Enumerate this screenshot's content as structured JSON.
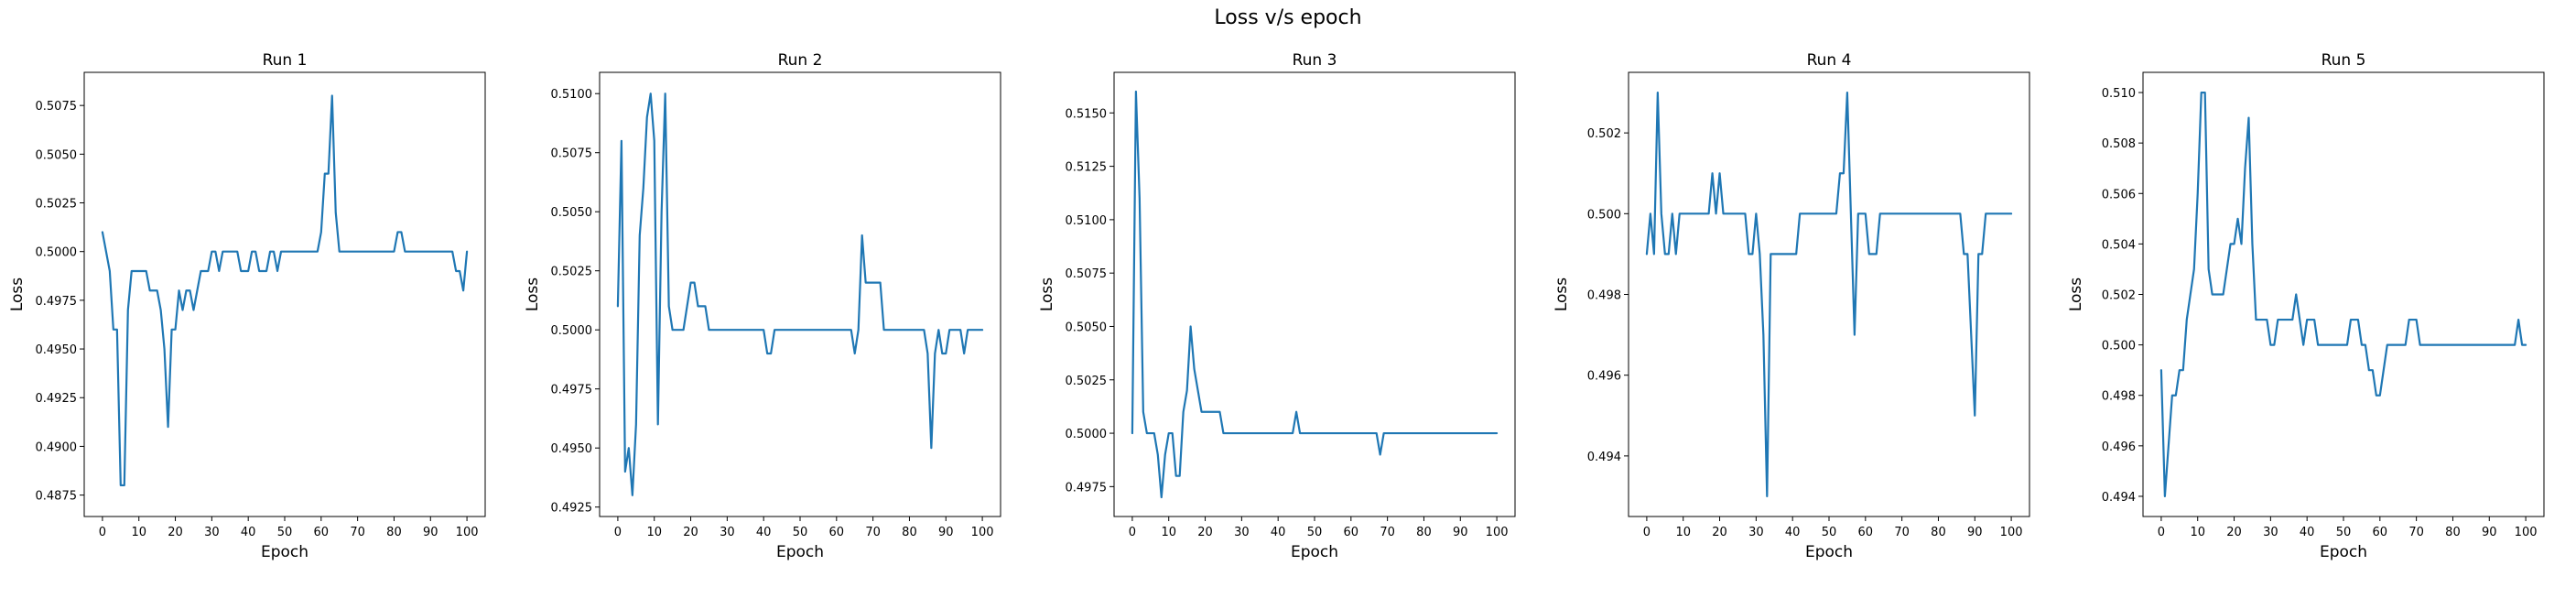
{
  "figure": {
    "suptitle": "Loss v/s epoch"
  },
  "colors": {
    "line": "#1f77b4",
    "axes": "#000000",
    "background": "#ffffff"
  },
  "chart_data": [
    {
      "type": "line",
      "title": "Run 1",
      "xlabel": "Epoch",
      "ylabel": "Loss",
      "xlim": [
        -5,
        105
      ],
      "ylim": [
        0.4864,
        0.5092
      ],
      "grid": false,
      "xticks": [
        0,
        10,
        20,
        30,
        40,
        50,
        60,
        70,
        80,
        90,
        100
      ],
      "yticks": [
        0.4875,
        0.49,
        0.4925,
        0.495,
        0.4975,
        0.5,
        0.5025,
        0.505,
        0.5075
      ],
      "ytick_labels": [
        "0.4875",
        "0.4900",
        "0.4925",
        "0.4950",
        "0.4975",
        "0.5000",
        "0.5025",
        "0.5050",
        "0.5075"
      ],
      "x": [
        0,
        1,
        2,
        3,
        4,
        5,
        6,
        7,
        8,
        9,
        10,
        11,
        12,
        13,
        14,
        15,
        16,
        17,
        18,
        19,
        20,
        21,
        22,
        23,
        24,
        25,
        26,
        27,
        28,
        29,
        30,
        31,
        32,
        33,
        34,
        35,
        36,
        37,
        38,
        39,
        40,
        41,
        42,
        43,
        44,
        45,
        46,
        47,
        48,
        49,
        50,
        51,
        52,
        53,
        54,
        55,
        56,
        57,
        58,
        59,
        60,
        61,
        62,
        63,
        64,
        65,
        66,
        67,
        68,
        69,
        70,
        71,
        72,
        73,
        74,
        75,
        76,
        77,
        78,
        79,
        80,
        81,
        82,
        83,
        84,
        85,
        86,
        87,
        88,
        89,
        90,
        91,
        92,
        93,
        94,
        95,
        96,
        97,
        98,
        99,
        100
      ],
      "y": [
        0.501,
        0.5,
        0.499,
        0.496,
        0.496,
        0.488,
        0.488,
        0.497,
        0.499,
        0.499,
        0.499,
        0.499,
        0.499,
        0.498,
        0.498,
        0.498,
        0.497,
        0.495,
        0.491,
        0.496,
        0.496,
        0.498,
        0.497,
        0.498,
        0.498,
        0.497,
        0.498,
        0.499,
        0.499,
        0.499,
        0.5,
        0.5,
        0.499,
        0.5,
        0.5,
        0.5,
        0.5,
        0.5,
        0.499,
        0.499,
        0.499,
        0.5,
        0.5,
        0.499,
        0.499,
        0.499,
        0.5,
        0.5,
        0.499,
        0.5,
        0.5,
        0.5,
        0.5,
        0.5,
        0.5,
        0.5,
        0.5,
        0.5,
        0.5,
        0.5,
        0.501,
        0.504,
        0.504,
        0.508,
        0.502,
        0.5,
        0.5,
        0.5,
        0.5,
        0.5,
        0.5,
        0.5,
        0.5,
        0.5,
        0.5,
        0.5,
        0.5,
        0.5,
        0.5,
        0.5,
        0.5,
        0.501,
        0.501,
        0.5,
        0.5,
        0.5,
        0.5,
        0.5,
        0.5,
        0.5,
        0.5,
        0.5,
        0.5,
        0.5,
        0.5,
        0.5,
        0.5,
        0.499,
        0.499,
        0.498,
        0.5
      ]
    },
    {
      "type": "line",
      "title": "Run 2",
      "xlabel": "Epoch",
      "ylabel": "Loss",
      "xlim": [
        -5,
        105
      ],
      "ylim": [
        0.4921,
        0.5109
      ],
      "grid": false,
      "xticks": [
        0,
        10,
        20,
        30,
        40,
        50,
        60,
        70,
        80,
        90,
        100
      ],
      "yticks": [
        0.4925,
        0.495,
        0.4975,
        0.5,
        0.5025,
        0.505,
        0.5075,
        0.51
      ],
      "ytick_labels": [
        "0.4925",
        "0.4950",
        "0.4975",
        "0.5000",
        "0.5025",
        "0.5050",
        "0.5075",
        "0.5100"
      ],
      "x": [
        0,
        1,
        2,
        3,
        4,
        5,
        6,
        7,
        8,
        9,
        10,
        11,
        12,
        13,
        14,
        15,
        16,
        17,
        18,
        19,
        20,
        21,
        22,
        23,
        24,
        25,
        26,
        27,
        28,
        29,
        30,
        31,
        32,
        33,
        34,
        35,
        36,
        37,
        38,
        39,
        40,
        41,
        42,
        43,
        44,
        45,
        46,
        47,
        48,
        49,
        50,
        51,
        52,
        53,
        54,
        55,
        56,
        57,
        58,
        59,
        60,
        61,
        62,
        63,
        64,
        65,
        66,
        67,
        68,
        69,
        70,
        71,
        72,
        73,
        74,
        75,
        76,
        77,
        78,
        79,
        80,
        81,
        82,
        83,
        84,
        85,
        86,
        87,
        88,
        89,
        90,
        91,
        92,
        93,
        94,
        95,
        96,
        97,
        98,
        99,
        100
      ],
      "y": [
        0.501,
        0.508,
        0.494,
        0.495,
        0.493,
        0.496,
        0.504,
        0.506,
        0.509,
        0.51,
        0.508,
        0.496,
        0.505,
        0.51,
        0.501,
        0.5,
        0.5,
        0.5,
        0.5,
        0.501,
        0.502,
        0.502,
        0.501,
        0.501,
        0.501,
        0.5,
        0.5,
        0.5,
        0.5,
        0.5,
        0.5,
        0.5,
        0.5,
        0.5,
        0.5,
        0.5,
        0.5,
        0.5,
        0.5,
        0.5,
        0.5,
        0.499,
        0.499,
        0.5,
        0.5,
        0.5,
        0.5,
        0.5,
        0.5,
        0.5,
        0.5,
        0.5,
        0.5,
        0.5,
        0.5,
        0.5,
        0.5,
        0.5,
        0.5,
        0.5,
        0.5,
        0.5,
        0.5,
        0.5,
        0.5,
        0.499,
        0.5,
        0.504,
        0.502,
        0.502,
        0.502,
        0.502,
        0.502,
        0.5,
        0.5,
        0.5,
        0.5,
        0.5,
        0.5,
        0.5,
        0.5,
        0.5,
        0.5,
        0.5,
        0.5,
        0.499,
        0.495,
        0.499,
        0.5,
        0.499,
        0.499,
        0.5,
        0.5,
        0.5,
        0.5,
        0.499,
        0.5,
        0.5,
        0.5,
        0.5,
        0.5
      ]
    },
    {
      "type": "line",
      "title": "Run 3",
      "xlabel": "Epoch",
      "ylabel": "Loss",
      "xlim": [
        -5,
        105
      ],
      "ylim": [
        0.4961,
        0.5169
      ],
      "grid": false,
      "xticks": [
        0,
        10,
        20,
        30,
        40,
        50,
        60,
        70,
        80,
        90,
        100
      ],
      "yticks": [
        0.4975,
        0.5,
        0.5025,
        0.505,
        0.5075,
        0.51,
        0.5125,
        0.515
      ],
      "ytick_labels": [
        "0.4975",
        "0.5000",
        "0.5025",
        "0.5050",
        "0.5075",
        "0.5100",
        "0.5125",
        "0.5150"
      ],
      "x": [
        0,
        1,
        2,
        3,
        4,
        5,
        6,
        7,
        8,
        9,
        10,
        11,
        12,
        13,
        14,
        15,
        16,
        17,
        18,
        19,
        20,
        21,
        22,
        23,
        24,
        25,
        26,
        27,
        28,
        29,
        30,
        31,
        32,
        33,
        34,
        35,
        36,
        37,
        38,
        39,
        40,
        41,
        42,
        43,
        44,
        45,
        46,
        47,
        48,
        49,
        50,
        51,
        52,
        53,
        54,
        55,
        56,
        57,
        58,
        59,
        60,
        61,
        62,
        63,
        64,
        65,
        66,
        67,
        68,
        69,
        70,
        71,
        72,
        73,
        74,
        75,
        76,
        77,
        78,
        79,
        80,
        81,
        82,
        83,
        84,
        85,
        86,
        87,
        88,
        89,
        90,
        91,
        92,
        93,
        94,
        95,
        96,
        97,
        98,
        99,
        100
      ],
      "y": [
        0.5,
        0.516,
        0.511,
        0.501,
        0.5,
        0.5,
        0.5,
        0.499,
        0.497,
        0.499,
        0.5,
        0.5,
        0.498,
        0.498,
        0.501,
        0.502,
        0.505,
        0.503,
        0.502,
        0.501,
        0.501,
        0.501,
        0.501,
        0.501,
        0.501,
        0.5,
        0.5,
        0.5,
        0.5,
        0.5,
        0.5,
        0.5,
        0.5,
        0.5,
        0.5,
        0.5,
        0.5,
        0.5,
        0.5,
        0.5,
        0.5,
        0.5,
        0.5,
        0.5,
        0.5,
        0.501,
        0.5,
        0.5,
        0.5,
        0.5,
        0.5,
        0.5,
        0.5,
        0.5,
        0.5,
        0.5,
        0.5,
        0.5,
        0.5,
        0.5,
        0.5,
        0.5,
        0.5,
        0.5,
        0.5,
        0.5,
        0.5,
        0.5,
        0.499,
        0.5,
        0.5,
        0.5,
        0.5,
        0.5,
        0.5,
        0.5,
        0.5,
        0.5,
        0.5,
        0.5,
        0.5,
        0.5,
        0.5,
        0.5,
        0.5,
        0.5,
        0.5,
        0.5,
        0.5,
        0.5,
        0.5,
        0.5,
        0.5,
        0.5,
        0.5,
        0.5,
        0.5,
        0.5,
        0.5,
        0.5,
        0.5
      ]
    },
    {
      "type": "line",
      "title": "Run 4",
      "xlabel": "Epoch",
      "ylabel": "Loss",
      "xlim": [
        -5,
        105
      ],
      "ylim": [
        0.4925,
        0.5035
      ],
      "grid": false,
      "xticks": [
        0,
        10,
        20,
        30,
        40,
        50,
        60,
        70,
        80,
        90,
        100
      ],
      "yticks": [
        0.494,
        0.496,
        0.498,
        0.5,
        0.502
      ],
      "ytick_labels": [
        "0.494",
        "0.496",
        "0.498",
        "0.500",
        "0.502"
      ],
      "x": [
        0,
        1,
        2,
        3,
        4,
        5,
        6,
        7,
        8,
        9,
        10,
        11,
        12,
        13,
        14,
        15,
        16,
        17,
        18,
        19,
        20,
        21,
        22,
        23,
        24,
        25,
        26,
        27,
        28,
        29,
        30,
        31,
        32,
        33,
        34,
        35,
        36,
        37,
        38,
        39,
        40,
        41,
        42,
        43,
        44,
        45,
        46,
        47,
        48,
        49,
        50,
        51,
        52,
        53,
        54,
        55,
        56,
        57,
        58,
        59,
        60,
        61,
        62,
        63,
        64,
        65,
        66,
        67,
        68,
        69,
        70,
        71,
        72,
        73,
        74,
        75,
        76,
        77,
        78,
        79,
        80,
        81,
        82,
        83,
        84,
        85,
        86,
        87,
        88,
        89,
        90,
        91,
        92,
        93,
        94,
        95,
        96,
        97,
        98,
        99,
        100
      ],
      "y": [
        0.499,
        0.5,
        0.499,
        0.503,
        0.5,
        0.499,
        0.499,
        0.5,
        0.499,
        0.5,
        0.5,
        0.5,
        0.5,
        0.5,
        0.5,
        0.5,
        0.5,
        0.5,
        0.501,
        0.5,
        0.501,
        0.5,
        0.5,
        0.5,
        0.5,
        0.5,
        0.5,
        0.5,
        0.499,
        0.499,
        0.5,
        0.499,
        0.497,
        0.493,
        0.499,
        0.499,
        0.499,
        0.499,
        0.499,
        0.499,
        0.499,
        0.499,
        0.5,
        0.5,
        0.5,
        0.5,
        0.5,
        0.5,
        0.5,
        0.5,
        0.5,
        0.5,
        0.5,
        0.501,
        0.501,
        0.503,
        0.5,
        0.497,
        0.5,
        0.5,
        0.5,
        0.499,
        0.499,
        0.499,
        0.5,
        0.5,
        0.5,
        0.5,
        0.5,
        0.5,
        0.5,
        0.5,
        0.5,
        0.5,
        0.5,
        0.5,
        0.5,
        0.5,
        0.5,
        0.5,
        0.5,
        0.5,
        0.5,
        0.5,
        0.5,
        0.5,
        0.5,
        0.499,
        0.499,
        0.497,
        0.495,
        0.499,
        0.499,
        0.5,
        0.5,
        0.5,
        0.5,
        0.5,
        0.5,
        0.5,
        0.5
      ]
    },
    {
      "type": "line",
      "title": "Run 5",
      "xlabel": "Epoch",
      "ylabel": "Loss",
      "xlim": [
        -5,
        105
      ],
      "ylim": [
        0.4932,
        0.5108
      ],
      "grid": false,
      "xticks": [
        0,
        10,
        20,
        30,
        40,
        50,
        60,
        70,
        80,
        90,
        100
      ],
      "yticks": [
        0.494,
        0.496,
        0.498,
        0.5,
        0.502,
        0.504,
        0.506,
        0.508,
        0.51
      ],
      "ytick_labels": [
        "0.494",
        "0.496",
        "0.498",
        "0.500",
        "0.502",
        "0.504",
        "0.506",
        "0.508",
        "0.510"
      ],
      "x": [
        0,
        1,
        2,
        3,
        4,
        5,
        6,
        7,
        8,
        9,
        10,
        11,
        12,
        13,
        14,
        15,
        16,
        17,
        18,
        19,
        20,
        21,
        22,
        23,
        24,
        25,
        26,
        27,
        28,
        29,
        30,
        31,
        32,
        33,
        34,
        35,
        36,
        37,
        38,
        39,
        40,
        41,
        42,
        43,
        44,
        45,
        46,
        47,
        48,
        49,
        50,
        51,
        52,
        53,
        54,
        55,
        56,
        57,
        58,
        59,
        60,
        61,
        62,
        63,
        64,
        65,
        66,
        67,
        68,
        69,
        70,
        71,
        72,
        73,
        74,
        75,
        76,
        77,
        78,
        79,
        80,
        81,
        82,
        83,
        84,
        85,
        86,
        87,
        88,
        89,
        90,
        91,
        92,
        93,
        94,
        95,
        96,
        97,
        98,
        99,
        100
      ],
      "y": [
        0.499,
        0.494,
        0.496,
        0.498,
        0.498,
        0.499,
        0.499,
        0.501,
        0.502,
        0.503,
        0.506,
        0.51,
        0.51,
        0.503,
        0.502,
        0.502,
        0.502,
        0.502,
        0.503,
        0.504,
        0.504,
        0.505,
        0.504,
        0.507,
        0.509,
        0.504,
        0.501,
        0.501,
        0.501,
        0.501,
        0.5,
        0.5,
        0.501,
        0.501,
        0.501,
        0.501,
        0.501,
        0.502,
        0.501,
        0.5,
        0.501,
        0.501,
        0.501,
        0.5,
        0.5,
        0.5,
        0.5,
        0.5,
        0.5,
        0.5,
        0.5,
        0.5,
        0.501,
        0.501,
        0.501,
        0.5,
        0.5,
        0.499,
        0.499,
        0.498,
        0.498,
        0.499,
        0.5,
        0.5,
        0.5,
        0.5,
        0.5,
        0.5,
        0.501,
        0.501,
        0.501,
        0.5,
        0.5,
        0.5,
        0.5,
        0.5,
        0.5,
        0.5,
        0.5,
        0.5,
        0.5,
        0.5,
        0.5,
        0.5,
        0.5,
        0.5,
        0.5,
        0.5,
        0.5,
        0.5,
        0.5,
        0.5,
        0.5,
        0.5,
        0.5,
        0.5,
        0.5,
        0.5,
        0.501,
        0.5,
        0.5
      ]
    }
  ]
}
